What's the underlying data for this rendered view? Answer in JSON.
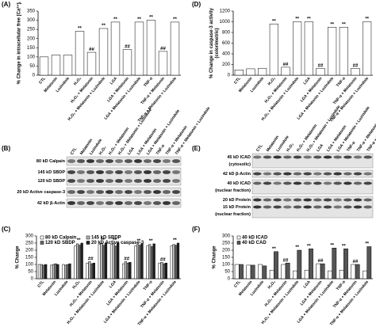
{
  "chart_data": [
    {
      "type": "bar",
      "panel_label": "(A)",
      "ylabel": [
        "% Change in intracellular free [Ca²⁺]ᵢ"
      ],
      "categories": [
        "CTL",
        "Melatonin",
        "Luzindole",
        "H₂O₂",
        "H₂O₂ + Melatonin",
        "H₂O₂ + Melatonin + Luzindole",
        "LGA",
        "LGA + Melatonin",
        "LGA + Melatonin + Luzindole",
        "TNF-α",
        "TNF-α + Melatonin",
        "TNF-α + Melatonin + Luzindole"
      ],
      "series": [
        {
          "name": null,
          "color": "#ffffff",
          "values": [
            100,
            110,
            110,
            240,
            125,
            255,
            290,
            140,
            290,
            300,
            130,
            290
          ]
        }
      ],
      "annotations": [
        null,
        null,
        null,
        "**",
        "##",
        "**",
        "**",
        "##",
        "**",
        "**",
        "##",
        "**"
      ],
      "ylim": [
        0,
        350
      ],
      "yticks": [
        0,
        50,
        100,
        150,
        200,
        250,
        300,
        350
      ]
    },
    {
      "type": "bar",
      "panel_label": "(D)",
      "ylabel": [
        "% Change in caspase-3 activity",
        "(colorimetric)"
      ],
      "categories": [
        "CTL",
        "Melatonin",
        "Luzindole",
        "H₂O₂",
        "H₂O₂ + Melatonin",
        "H₂O₂ + Melatonin + Luzindole",
        "LGA",
        "LGA + Melatonin",
        "LGA + Melatonin + Luzindole",
        "TNF-α",
        "TNF-α + Melatonin",
        "TNF-α + Melatonin + Luzindole"
      ],
      "series": [
        {
          "name": null,
          "color": "#ffffff",
          "values": [
            100,
            120,
            130,
            960,
            150,
            1000,
            1000,
            130,
            900,
            900,
            130,
            1000
          ]
        }
      ],
      "annotations": [
        null,
        null,
        null,
        "**",
        "##",
        "**",
        "**",
        "##",
        "**",
        "**",
        "##",
        "**"
      ],
      "ylim": [
        0,
        1200
      ],
      "yticks": [
        0,
        200,
        400,
        600,
        800,
        1000,
        1200
      ]
    },
    {
      "type": "bar",
      "panel_label": "(C)",
      "ylabel": [
        "% Change"
      ],
      "legend": "upper left",
      "categories": [
        "CTL",
        "Melatonin",
        "Luzindole",
        "H₂O₂",
        "H₂O₂ + Melatonin",
        "H₂O₂ + Melatonin + Luzindole",
        "LGA",
        "LGA + Melatonin",
        "LGA + Melatonin + Luzindole",
        "TNF-α",
        "TNF-α + Melatonin",
        "TNF-α + Melatonin + Luzindole"
      ],
      "series": [
        {
          "name": "80 kD Calpain",
          "color": "#ffffff",
          "values": [
            100,
            95,
            100,
            230,
            110,
            240,
            240,
            105,
            230,
            230,
            110,
            230
          ]
        },
        {
          "name": "145 kD SBDP",
          "color": "#b8b8b8",
          "values": [
            100,
            100,
            95,
            245,
            120,
            250,
            245,
            120,
            240,
            240,
            115,
            240
          ]
        },
        {
          "name": "120 kD SBDP",
          "color": "#6a6a6a",
          "values": [
            95,
            105,
            100,
            235,
            105,
            235,
            230,
            110,
            235,
            225,
            105,
            235
          ]
        },
        {
          "name": "20 kD Active caspase-3",
          "color": "#222222",
          "values": [
            100,
            100,
            105,
            250,
            110,
            250,
            250,
            115,
            245,
            245,
            110,
            250
          ]
        }
      ],
      "annotations": [
        null,
        null,
        null,
        "**",
        "##",
        "**",
        "**",
        "##",
        "**",
        "**",
        "##",
        "**"
      ],
      "ylim": [
        0,
        300
      ],
      "yticks": [
        0,
        50,
        100,
        150,
        200,
        250,
        300
      ]
    },
    {
      "type": "bar",
      "panel_label": "(F)",
      "ylabel": [
        "% Change"
      ],
      "legend": "upper left",
      "categories": [
        "CTL",
        "Melatonin",
        "Luzindole",
        "H₂O₂",
        "H₂O₂ + Melatonin",
        "H₂O₂ + Melatonin + Luzindole",
        "LGA",
        "LGA + Melatonin",
        "LGA + Melatonin + Luzindole",
        "TNF-α",
        "TNF-α + Melatonin",
        "TNF-α + Melatonin + Luzindole"
      ],
      "series": [
        {
          "name": "40 kD ICAD",
          "color": "#ffffff",
          "values": [
            100,
            95,
            100,
            60,
            100,
            55,
            60,
            105,
            55,
            60,
            100,
            55
          ]
        },
        {
          "name": "40 kD CAD",
          "color": "#555555",
          "values": [
            100,
            95,
            90,
            190,
            110,
            200,
            210,
            105,
            215,
            210,
            100,
            225
          ]
        }
      ],
      "annotations": [
        null,
        null,
        null,
        "**",
        "##",
        "**",
        "**",
        "##",
        "**",
        "**",
        "##",
        "**"
      ],
      "ylim": [
        0,
        300
      ],
      "yticks": [
        0,
        50,
        100,
        150,
        200,
        250,
        300
      ]
    }
  ],
  "blots": [
    {
      "panel_label": "(B)",
      "categories": [
        "CTL",
        "Melatonin",
        "Luzindole",
        "H₂O₂",
        "H₂O₂ + Melatonin",
        "H₂O₂ + Melatonin + Luzindole",
        "LGA",
        "LGA + Melatonin",
        "LGA + Melatonin + Luzindole",
        "TNF-α",
        "TNF-α + Melatonin",
        "TNF-α + Melatonin + Luzindole"
      ],
      "rows": [
        {
          "lines": [
            "80 kD Calpain"
          ]
        },
        {
          "lines": [
            "145 kD SBDP",
            "120 kD SBDP"
          ]
        },
        {
          "lines": [
            "20 kD Active caspase-3"
          ]
        },
        {
          "lines": [
            "42 kD β-Actin"
          ]
        }
      ]
    },
    {
      "panel_label": "(E)",
      "categories": [
        "CTL",
        "Melatonin",
        "Luzindole",
        "H₂O₂",
        "H₂O₂ + Melatonin",
        "H₂O₂ + Melatonin + Luzindole",
        "LGA",
        "LGA + Melatonin",
        "LGA + Melatonin + Luzindole",
        "TNF-α",
        "TNF-α + Melatonin",
        "TNF-α + Melatonin + Luzindole"
      ],
      "rows": [
        {
          "lines": [
            "45 kD ICAD",
            "(cytosolic)"
          ]
        },
        {
          "lines": [
            "42 kD β-Actin"
          ]
        },
        {
          "lines": [
            "40 kD ICAD",
            "(nuclear fraction)"
          ]
        },
        {
          "lines": [
            "20 kD Protein",
            "15 kD Protein",
            "(nuclear fraction)"
          ]
        }
      ]
    }
  ]
}
